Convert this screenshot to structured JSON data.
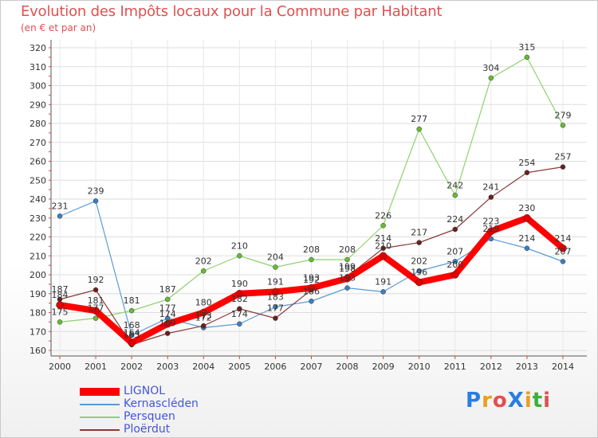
{
  "title": "Evolution des Impôts locaux pour la Commune par Habitant",
  "subtitle": "(en € et par an)",
  "logo": {
    "text": "ProXiti",
    "letters": [
      "P",
      "r",
      "o",
      "X",
      "i",
      "t",
      "i"
    ],
    "colors": [
      "#2a7de1",
      "#e8a020",
      "#e05050",
      "#2a7de1",
      "#e8a020",
      "#3bb03b",
      "#e05050"
    ]
  },
  "chart_data": {
    "type": "line",
    "title": "Evolution des Impôts locaux pour la Commune par Habitant",
    "subtitle": "(en € et par an)",
    "xlabel": "",
    "ylabel": "",
    "ylim": [
      160,
      320
    ],
    "yticks": [
      "160",
      "170",
      "180",
      "190",
      "200",
      "210",
      "220",
      "230",
      "240",
      "250",
      "260",
      "270",
      "280",
      "290",
      "300",
      "310",
      "320"
    ],
    "categories": [
      "2000",
      "2001",
      "2002",
      "2003",
      "2004",
      "2005",
      "2006",
      "2007",
      "2008",
      "2009",
      "2010",
      "2011",
      "2012",
      "2013",
      "2014"
    ],
    "legend_position": "bottom-left",
    "series": [
      {
        "name": "Kernascléden",
        "color": "#5b9bd5",
        "marker_color": "#3a7fc2",
        "width": 1.2,
        "values": [
          231,
          239,
          168,
          177,
          172,
          174,
          183,
          186,
          193,
          191,
          202,
          207,
          219,
          214,
          207
        ],
        "labels": [
          "231",
          "239",
          "168",
          "177",
          "172",
          "174",
          "183",
          "186",
          "193",
          "191",
          "202",
          "207",
          "219",
          "214",
          "207"
        ]
      },
      {
        "name": "Persquen",
        "color": "#8fd16e",
        "marker_color": "#66bb33",
        "width": 1.2,
        "values": [
          175,
          177,
          181,
          187,
          202,
          210,
          204,
          208,
          208,
          226,
          277,
          242,
          304,
          315,
          279
        ],
        "labels": [
          "175",
          "177",
          "181",
          "187",
          "202",
          "210",
          "204",
          "208",
          "208",
          "226",
          "277",
          "242",
          "304",
          "315",
          "279"
        ]
      },
      {
        "name": "Ploërdut",
        "color": "#8b3a3a",
        "marker_color": "#6b1f1f",
        "width": 1.2,
        "values": [
          187,
          192,
          163,
          169,
          173,
          182,
          177,
          192,
          199,
          214,
          217,
          224,
          241,
          254,
          257
        ],
        "labels": [
          "187",
          "192",
          "163",
          "169",
          "173",
          "182",
          "177",
          "192",
          "199",
          "214",
          "217",
          "224",
          "241",
          "254",
          "257"
        ]
      },
      {
        "name": "LIGNOL",
        "color": "#ff0000",
        "marker_color": "#e00000",
        "width": 8,
        "values": [
          184,
          181,
          164,
          174,
          180,
          190,
          191,
          193,
          198,
          210,
          196,
          200,
          223,
          230,
          214
        ],
        "labels": [
          "184",
          "181",
          "164",
          "174",
          "180",
          "190",
          "191",
          "193",
          "198",
          "210",
          "196",
          "200",
          "223",
          "230",
          "214"
        ]
      }
    ],
    "legend_order": [
      "LIGNOL",
      "Kernascléden",
      "Persquen",
      "Ploërdut"
    ]
  }
}
